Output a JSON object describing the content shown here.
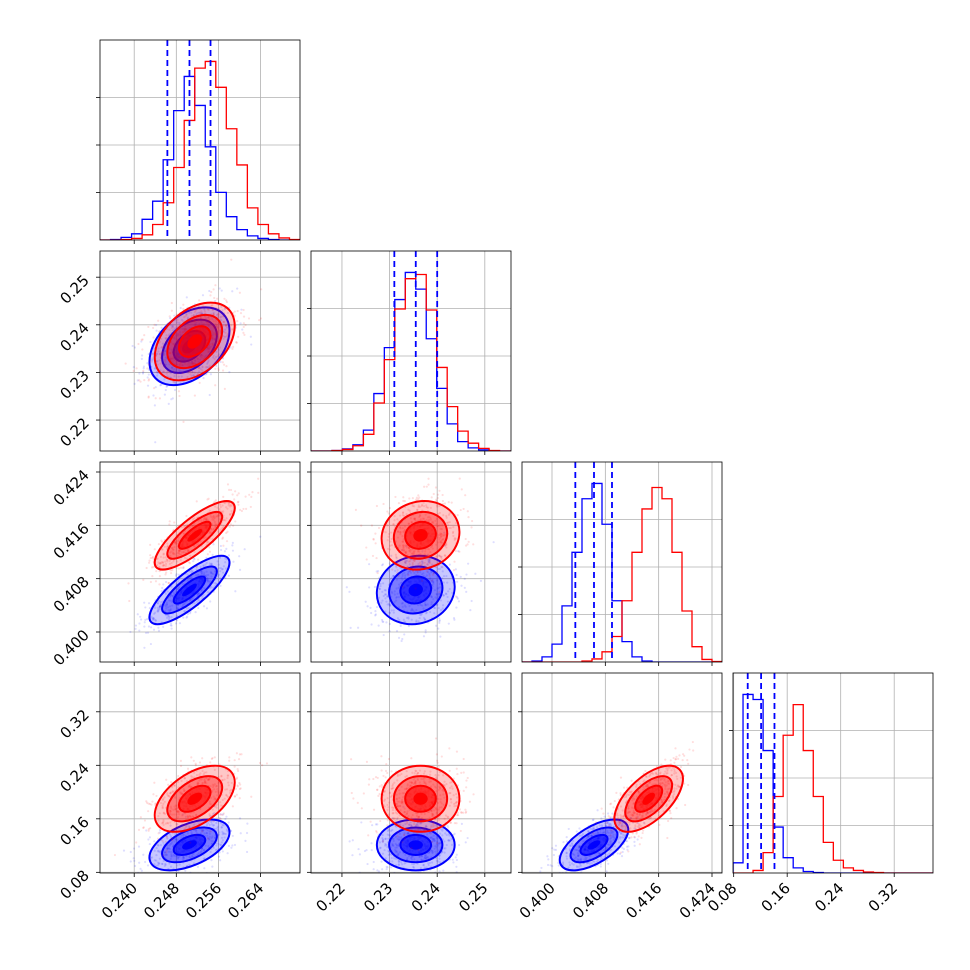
{
  "colors": {
    "run_a": "#0000ff",
    "run_b": "#ff0000",
    "grid": "#b0b0b0"
  },
  "chart_data": {
    "type": "corner",
    "grid": true,
    "params": [
      {
        "range": [
          0.2335,
          0.2715
        ],
        "ticks": [
          0.24,
          0.248,
          0.256,
          0.264
        ],
        "tick_labels": [
          "0.240",
          "0.248",
          "0.256",
          "0.264"
        ]
      },
      {
        "range": [
          0.2135,
          0.2555
        ],
        "ticks": [
          0.22,
          0.23,
          0.24,
          0.25
        ],
        "tick_labels": [
          "0.22",
          "0.23",
          "0.24",
          "0.25"
        ]
      },
      {
        "range": [
          0.3955,
          0.4255
        ],
        "ticks": [
          0.4,
          0.408,
          0.416,
          0.424
        ],
        "tick_labels": [
          "0.400",
          "0.408",
          "0.416",
          "0.424"
        ]
      },
      {
        "range": [
          0.079,
          0.378
        ],
        "ticks": [
          0.08,
          0.16,
          0.24,
          0.32
        ],
        "tick_labels": [
          "0.08",
          "0.16",
          "0.24",
          "0.32"
        ]
      }
    ],
    "series": [
      {
        "color": "#0000ff",
        "means": [
          0.2505,
          0.2355,
          0.4063,
          0.121
        ],
        "sigmas": [
          0.004,
          0.0043,
          0.0027,
          0.02
        ],
        "corr": [
          [
            1,
            0.4,
            0.8,
            0.5
          ],
          [
            0.4,
            1,
            0.1,
            0.0
          ],
          [
            0.8,
            0.1,
            1,
            0.6
          ],
          [
            0.5,
            0.0,
            0.6,
            1
          ]
        ]
      },
      {
        "color": "#ff0000",
        "means": [
          0.2515,
          0.2365,
          0.4145,
          0.19
        ],
        "sigmas": [
          0.004,
          0.0043,
          0.0027,
          0.026
        ],
        "corr": [
          [
            1,
            0.4,
            0.8,
            0.5
          ],
          [
            0.4,
            1,
            0.1,
            0.0
          ],
          [
            0.8,
            0.1,
            1,
            0.6
          ],
          [
            0.5,
            0.0,
            0.6,
            1
          ]
        ]
      }
    ],
    "quantile_lines": {
      "color": "#0000ff",
      "values": [
        [
          0.2463,
          0.2505,
          0.2545
        ],
        [
          0.231,
          0.2355,
          0.24
        ],
        [
          0.4035,
          0.4063,
          0.409
        ],
        [
          0.101,
          0.121,
          0.141
        ]
      ]
    },
    "histograms": [
      {
        "bin_edges": [
          0.2335,
          0.2355,
          0.2375,
          0.2395,
          0.2415,
          0.2435,
          0.2455,
          0.2475,
          0.2495,
          0.2515,
          0.2535,
          0.2555,
          0.2575,
          0.2595,
          0.2615,
          0.2635,
          0.2655,
          0.2675,
          0.2695,
          0.2715
        ],
        "blue": [
          0,
          1,
          5,
          12,
          40,
          75,
          155,
          250,
          316,
          260,
          180,
          92,
          45,
          20,
          8,
          3,
          1,
          0,
          0
        ],
        "red": [
          0,
          0,
          1,
          3,
          10,
          30,
          72,
          140,
          231,
          332,
          345,
          295,
          215,
          145,
          62,
          30,
          12,
          4,
          1
        ]
      },
      {
        "bin_edges": [
          0.2135,
          0.2157,
          0.2179,
          0.2201,
          0.2223,
          0.2245,
          0.2267,
          0.2289,
          0.2311,
          0.2333,
          0.2355,
          0.2377,
          0.2399,
          0.2421,
          0.2443,
          0.2465,
          0.2487,
          0.2509,
          0.2531,
          0.2555
        ],
        "blue": [
          0,
          0,
          1,
          4,
          12,
          40,
          110,
          198,
          290,
          342,
          310,
          215,
          120,
          52,
          18,
          6,
          2,
          0,
          0
        ],
        "red": [
          0,
          0,
          1,
          3,
          10,
          32,
          92,
          175,
          272,
          330,
          338,
          270,
          160,
          85,
          38,
          15,
          5,
          1,
          0
        ]
      },
      {
        "bin_edges": [
          0.3955,
          0.397,
          0.3985,
          0.4,
          0.4015,
          0.403,
          0.4045,
          0.406,
          0.4075,
          0.409,
          0.4105,
          0.412,
          0.4135,
          0.415,
          0.4165,
          0.418,
          0.4195,
          0.421,
          0.4225,
          0.424,
          0.4255
        ],
        "blue": [
          0,
          2,
          10,
          35,
          110,
          215,
          320,
          350,
          270,
          120,
          40,
          10,
          2,
          0,
          0,
          0,
          0,
          0,
          0,
          0
        ],
        "red": [
          0,
          0,
          0,
          0,
          0,
          0,
          2,
          6,
          20,
          50,
          120,
          215,
          300,
          342,
          320,
          215,
          100,
          30,
          5,
          1
        ]
      },
      {
        "bin_edges": [
          0.079,
          0.094,
          0.109,
          0.124,
          0.139,
          0.154,
          0.169,
          0.184,
          0.199,
          0.214,
          0.229,
          0.244,
          0.259,
          0.274,
          0.289,
          0.304,
          0.319,
          0.334,
          0.349,
          0.364,
          0.378
        ],
        "blue": [
          20,
          350,
          340,
          240,
          90,
          30,
          10,
          3,
          1,
          0,
          0,
          0,
          0,
          0,
          0,
          0,
          0,
          0,
          0,
          0
        ],
        "red": [
          0,
          0,
          5,
          40,
          150,
          270,
          330,
          240,
          150,
          60,
          25,
          10,
          5,
          2,
          1,
          0,
          0,
          0,
          0,
          0
        ]
      }
    ]
  }
}
